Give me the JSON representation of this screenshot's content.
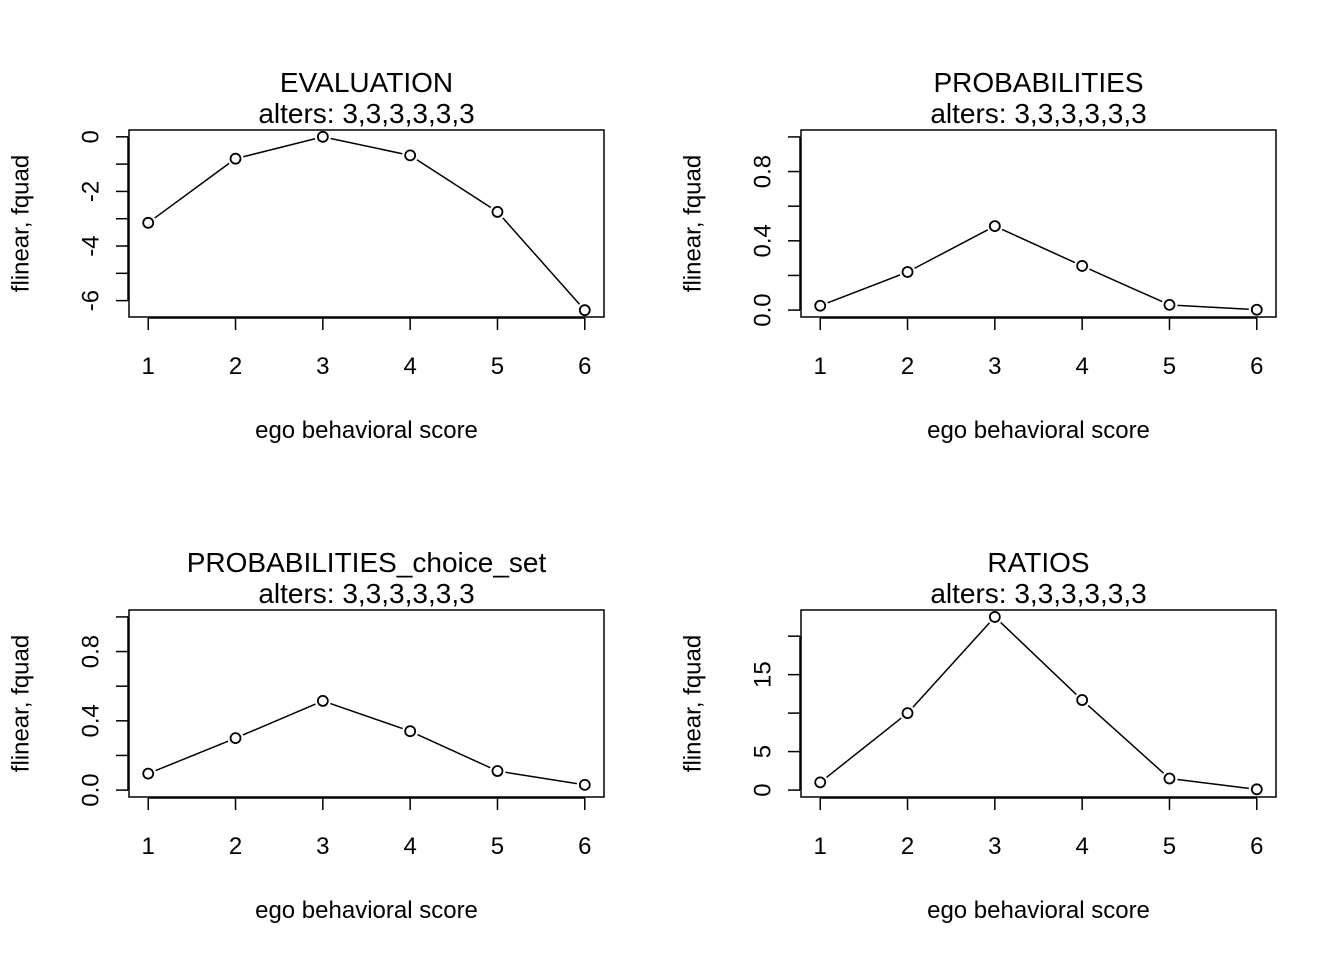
{
  "chart_data": [
    {
      "type": "line",
      "title": "EVALUATION",
      "subtitle": "alters: 3,3,3,3,3,3",
      "xlabel": "ego behavioral score",
      "ylabel": "flinear, fquad",
      "x": [
        1,
        2,
        3,
        4,
        5,
        6
      ],
      "values": [
        -3.15,
        -0.8,
        0.0,
        -0.68,
        -2.75,
        -6.35
      ],
      "xlim": [
        0.78,
        6.22
      ],
      "ylim": [
        -6.6,
        0.25
      ],
      "xticks": [
        "1",
        "2",
        "3",
        "4",
        "5",
        "6"
      ],
      "yticks": [
        {
          "value": 0,
          "label": "0"
        },
        {
          "value": -1,
          "label": ""
        },
        {
          "value": -2,
          "label": "-2"
        },
        {
          "value": -3,
          "label": ""
        },
        {
          "value": -4,
          "label": "-4"
        },
        {
          "value": -5,
          "label": ""
        },
        {
          "value": -6,
          "label": "-6"
        }
      ]
    },
    {
      "type": "line",
      "title": "PROBABILITIES",
      "subtitle": "alters: 3,3,3,3,3,3",
      "xlabel": "ego behavioral score",
      "ylabel": "flinear, fquad",
      "x": [
        1,
        2,
        3,
        4,
        5,
        6
      ],
      "values": [
        0.025,
        0.22,
        0.485,
        0.255,
        0.03,
        0.002
      ],
      "xlim": [
        0.78,
        6.22
      ],
      "ylim": [
        -0.04,
        1.04
      ],
      "xticks": [
        "1",
        "2",
        "3",
        "4",
        "5",
        "6"
      ],
      "yticks": [
        {
          "value": 0.0,
          "label": "0.0"
        },
        {
          "value": 0.2,
          "label": ""
        },
        {
          "value": 0.4,
          "label": "0.4"
        },
        {
          "value": 0.6,
          "label": ""
        },
        {
          "value": 0.8,
          "label": "0.8"
        },
        {
          "value": 1.0,
          "label": ""
        }
      ]
    },
    {
      "type": "line",
      "title": "PROBABILITIES_choice_set",
      "subtitle": "alters: 3,3,3,3,3,3",
      "xlabel": "ego behavioral score",
      "ylabel": "flinear, fquad",
      "x": [
        1,
        2,
        3,
        4,
        5,
        6
      ],
      "values": [
        0.095,
        0.3,
        0.515,
        0.34,
        0.11,
        0.03
      ],
      "xlim": [
        0.78,
        6.22
      ],
      "ylim": [
        -0.04,
        1.04
      ],
      "xticks": [
        "1",
        "2",
        "3",
        "4",
        "5",
        "6"
      ],
      "yticks": [
        {
          "value": 0.0,
          "label": "0.0"
        },
        {
          "value": 0.2,
          "label": ""
        },
        {
          "value": 0.4,
          "label": "0.4"
        },
        {
          "value": 0.6,
          "label": ""
        },
        {
          "value": 0.8,
          "label": "0.8"
        },
        {
          "value": 1.0,
          "label": ""
        }
      ]
    },
    {
      "type": "line",
      "title": "RATIOS",
      "subtitle": "alters: 3,3,3,3,3,3",
      "xlabel": "ego behavioral score",
      "ylabel": "flinear, fquad",
      "x": [
        1,
        2,
        3,
        4,
        5,
        6
      ],
      "values": [
        1.0,
        10.0,
        22.5,
        11.7,
        1.5,
        0.1
      ],
      "xlim": [
        0.78,
        6.22
      ],
      "ylim": [
        -0.9,
        23.4
      ],
      "xticks": [
        "1",
        "2",
        "3",
        "4",
        "5",
        "6"
      ],
      "yticks": [
        {
          "value": 0,
          "label": "0"
        },
        {
          "value": 5,
          "label": "5"
        },
        {
          "value": 10,
          "label": ""
        },
        {
          "value": 15,
          "label": "15"
        },
        {
          "value": 20,
          "label": ""
        }
      ]
    }
  ]
}
